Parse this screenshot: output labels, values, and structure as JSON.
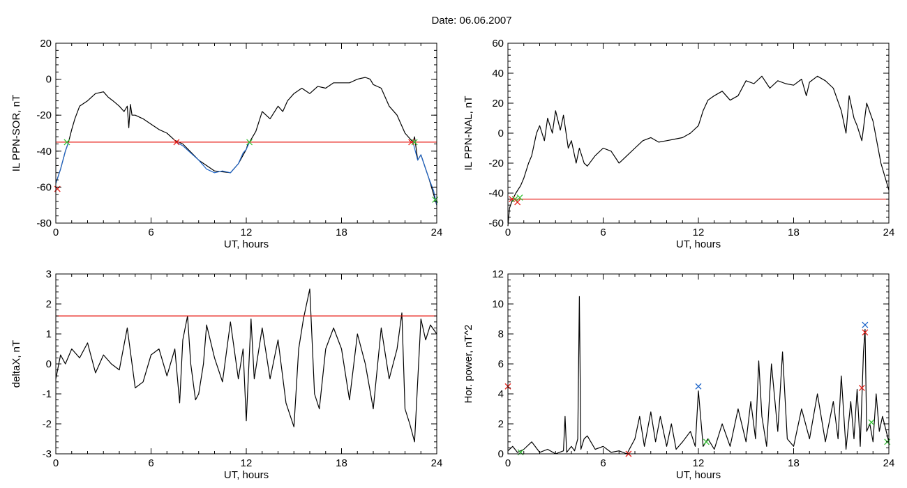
{
  "figure": {
    "title": "Date:  06.06.2007"
  },
  "chart_data": [
    {
      "type": "line",
      "panel": "top-left",
      "xlabel": "UT, hours",
      "ylabel": "IL PPN-SOR, nT",
      "xlim": [
        0,
        24
      ],
      "ylim": [
        -80,
        20
      ],
      "xticks": [
        0,
        6,
        12,
        18,
        24
      ],
      "yticks": [
        -80,
        -60,
        -40,
        -20,
        0,
        20
      ],
      "threshold": {
        "value": -35,
        "color": "#e8201a"
      },
      "series": [
        {
          "color": "#000000",
          "x": [
            0,
            0.3,
            0.6,
            0.8,
            1.0,
            1.2,
            1.5,
            2.0,
            2.5,
            3.0,
            3.3,
            3.6,
            4.0,
            4.3,
            4.5,
            4.6,
            4.7,
            4.8,
            5.0,
            5.5,
            6.0,
            6.5,
            7.0,
            7.5,
            8.0,
            9.0,
            10.0,
            11.0,
            11.5,
            12.0,
            12.1,
            12.2,
            12.6,
            13.0,
            13.5,
            14.0,
            14.3,
            14.6,
            15.0,
            15.5,
            16.0,
            16.5,
            17.0,
            17.5,
            18.0,
            18.5,
            19.0,
            19.5,
            19.8,
            20.0,
            20.5,
            21.0,
            21.5,
            22.0,
            22.5,
            22.6,
            22.8,
            23.0,
            23.5,
            24.0
          ],
          "y": [
            -58,
            -50,
            -40,
            -35,
            -28,
            -22,
            -15,
            -12,
            -8,
            -7,
            -10,
            -12,
            -15,
            -18,
            -15,
            -27,
            -14,
            -20,
            -20,
            -22,
            -25,
            -28,
            -30,
            -34,
            -36,
            -45,
            -51,
            -52,
            -47,
            -39,
            -36,
            -35,
            -29,
            -18,
            -22,
            -15,
            -18,
            -12,
            -8,
            -5,
            -8,
            -4,
            -5,
            -2,
            -2,
            -2,
            0,
            1,
            0,
            -3,
            -5,
            -15,
            -20,
            -30,
            -35,
            -32,
            -45,
            -42,
            -55,
            -70
          ]
        },
        {
          "color": "#1f66c9",
          "x": [
            0,
            0.3,
            0.6,
            0.8
          ],
          "y": [
            -58,
            -50,
            -40,
            -35
          ]
        },
        {
          "color": "#1f66c9",
          "x": [
            7.6,
            8.0,
            8.5,
            9.0,
            9.5,
            10.0,
            10.5,
            11.0,
            11.5,
            11.8,
            12.0,
            12.2
          ],
          "y": [
            -35,
            -37,
            -41,
            -45,
            -50,
            -52,
            -51,
            -52,
            -47,
            -41,
            -39,
            -35
          ]
        },
        {
          "color": "#1f66c9",
          "x": [
            22.5,
            22.8,
            23.0,
            23.3,
            23.5,
            23.8,
            24.0
          ],
          "y": [
            -35,
            -45,
            -42,
            -50,
            -55,
            -62,
            -70
          ]
        }
      ],
      "markers": [
        {
          "x": 0.7,
          "y": -35,
          "color": "#35c235"
        },
        {
          "x": 7.6,
          "y": -35,
          "color": "#e8201a"
        },
        {
          "x": 12.2,
          "y": -35,
          "color": "#35c235"
        },
        {
          "x": 22.4,
          "y": -35,
          "color": "#e8201a"
        },
        {
          "x": 22.6,
          "y": -35,
          "color": "#35c235"
        },
        {
          "x": 0.1,
          "y": -61,
          "color": "#e8201a"
        },
        {
          "x": 23.9,
          "y": -67,
          "color": "#35c235"
        }
      ]
    },
    {
      "type": "line",
      "panel": "top-right",
      "xlabel": "UT, hours",
      "ylabel": "IL PPN-NAL, nT",
      "xlim": [
        0,
        24
      ],
      "ylim": [
        -60,
        60
      ],
      "xticks": [
        0,
        6,
        12,
        18,
        24
      ],
      "yticks": [
        -60,
        -40,
        -20,
        0,
        20,
        40,
        60
      ],
      "threshold": {
        "value": -44,
        "color": "#e8201a"
      },
      "series": [
        {
          "color": "#000000",
          "x": [
            0,
            0.1,
            0.3,
            0.5,
            0.8,
            1.0,
            1.3,
            1.5,
            1.8,
            2.0,
            2.3,
            2.5,
            2.8,
            3.0,
            3.3,
            3.5,
            3.8,
            4.0,
            4.3,
            4.5,
            4.8,
            5.0,
            5.5,
            6.0,
            6.5,
            7.0,
            7.5,
            8.0,
            8.5,
            9.0,
            9.5,
            10.0,
            10.5,
            11.0,
            11.5,
            12.0,
            12.3,
            12.6,
            13.0,
            13.5,
            14.0,
            14.5,
            15.0,
            15.5,
            16.0,
            16.5,
            17.0,
            17.5,
            18.0,
            18.5,
            18.8,
            19.0,
            19.5,
            20.0,
            20.5,
            21.0,
            21.3,
            21.5,
            21.8,
            22.0,
            22.3,
            22.6,
            23.0,
            23.5,
            24.0
          ],
          "y": [
            -62,
            -50,
            -44,
            -40,
            -35,
            -30,
            -20,
            -15,
            0,
            5,
            -5,
            10,
            0,
            15,
            2,
            12,
            -10,
            -5,
            -20,
            -10,
            -20,
            -22,
            -15,
            -10,
            -12,
            -20,
            -15,
            -10,
            -5,
            -3,
            -6,
            -5,
            -4,
            -3,
            0,
            5,
            15,
            22,
            25,
            28,
            22,
            25,
            35,
            33,
            38,
            30,
            35,
            33,
            32,
            36,
            25,
            34,
            38,
            35,
            30,
            15,
            0,
            25,
            10,
            5,
            -5,
            20,
            8,
            -20,
            -38
          ]
        }
      ],
      "markers": [
        {
          "x": 0.25,
          "y": -44,
          "color": "#e8201a"
        },
        {
          "x": 0.45,
          "y": -44,
          "color": "#35c235"
        },
        {
          "x": 0.6,
          "y": -46,
          "color": "#e8201a"
        },
        {
          "x": 0.75,
          "y": -43,
          "color": "#35c235"
        }
      ]
    },
    {
      "type": "line",
      "panel": "bottom-left",
      "xlabel": "UT, hours",
      "ylabel": "deltaX, nT",
      "xlim": [
        0,
        24
      ],
      "ylim": [
        -3,
        3
      ],
      "xticks": [
        0,
        6,
        12,
        18,
        24
      ],
      "yticks": [
        -3,
        -2,
        -1,
        0,
        1,
        2,
        3
      ],
      "threshold": {
        "value": 1.6,
        "color": "#e8201a"
      },
      "series": [
        {
          "color": "#000000",
          "x": [
            0,
            0.3,
            0.6,
            1.0,
            1.5,
            2.0,
            2.5,
            3.0,
            3.5,
            4.0,
            4.5,
            5.0,
            5.5,
            6.0,
            6.5,
            7.0,
            7.5,
            7.8,
            8.0,
            8.3,
            8.5,
            8.8,
            9.0,
            9.3,
            9.5,
            10.0,
            10.5,
            11.0,
            11.5,
            11.8,
            12.0,
            12.3,
            12.5,
            13.0,
            13.5,
            14.0,
            14.5,
            15.0,
            15.3,
            15.6,
            16.0,
            16.3,
            16.6,
            17.0,
            17.5,
            18.0,
            18.5,
            19.0,
            19.5,
            20.0,
            20.5,
            21.0,
            21.5,
            21.8,
            22.0,
            22.3,
            22.6,
            23.0,
            23.3,
            23.6,
            24.0
          ],
          "y": [
            -0.5,
            0.3,
            0.0,
            0.5,
            0.2,
            0.7,
            -0.3,
            0.3,
            0.0,
            -0.2,
            1.2,
            -0.8,
            -0.6,
            0.3,
            0.5,
            -0.4,
            0.5,
            -1.3,
            0.8,
            1.6,
            0.0,
            -1.2,
            -1.0,
            0.0,
            1.3,
            0.2,
            -0.6,
            1.4,
            -0.5,
            0.5,
            -1.9,
            1.5,
            -0.5,
            1.2,
            -0.5,
            0.8,
            -1.3,
            -2.1,
            0.5,
            1.5,
            2.5,
            -1.0,
            -1.5,
            0.5,
            1.2,
            0.5,
            -1.2,
            1.0,
            0.0,
            -1.5,
            1.2,
            -0.5,
            0.5,
            1.7,
            -1.5,
            -2.0,
            -2.6,
            1.5,
            0.8,
            1.3,
            1.0
          ]
        }
      ],
      "markers": []
    },
    {
      "type": "line",
      "panel": "bottom-right",
      "xlabel": "UT, hours",
      "ylabel": "Hor. power, nT^2",
      "xlim": [
        0,
        24
      ],
      "ylim": [
        0,
        12
      ],
      "xticks": [
        0,
        6,
        12,
        18,
        24
      ],
      "yticks": [
        0,
        2,
        4,
        6,
        8,
        10,
        12
      ],
      "series": [
        {
          "color": "#000000",
          "x": [
            0,
            0.3,
            0.6,
            1.0,
            1.5,
            2.0,
            2.5,
            3.0,
            3.5,
            3.6,
            3.7,
            4.0,
            4.2,
            4.4,
            4.5,
            4.6,
            4.8,
            5.0,
            5.5,
            6.0,
            6.5,
            7.0,
            7.5,
            8.0,
            8.3,
            8.6,
            9.0,
            9.3,
            9.6,
            10.0,
            10.3,
            10.6,
            11.0,
            11.5,
            11.8,
            12.0,
            12.3,
            12.6,
            13.0,
            13.5,
            14.0,
            14.5,
            15.0,
            15.3,
            15.6,
            15.8,
            16.0,
            16.3,
            16.6,
            17.0,
            17.3,
            17.6,
            18.0,
            18.5,
            19.0,
            19.5,
            20.0,
            20.5,
            20.8,
            21.0,
            21.3,
            21.6,
            21.8,
            22.0,
            22.2,
            22.4,
            22.5,
            22.6,
            22.8,
            23.0,
            23.2,
            23.4,
            23.6,
            24.0
          ],
          "y": [
            0.2,
            0.5,
            0.1,
            0.3,
            0.8,
            0.1,
            0.3,
            0.0,
            0.2,
            2.5,
            0.1,
            0.5,
            0.2,
            1.0,
            10.5,
            0.3,
            1.0,
            1.2,
            0.3,
            0.5,
            0.1,
            0.2,
            0.0,
            1.0,
            2.5,
            0.5,
            2.8,
            0.8,
            2.5,
            0.5,
            2.0,
            0.3,
            0.8,
            1.5,
            0.5,
            4.2,
            0.5,
            1.0,
            0.3,
            2.0,
            0.5,
            3.0,
            0.8,
            3.5,
            1.0,
            6.2,
            2.5,
            0.5,
            6.0,
            1.5,
            6.8,
            1.0,
            0.5,
            3.0,
            1.0,
            4.0,
            0.8,
            3.5,
            1.0,
            5.2,
            0.3,
            3.5,
            1.0,
            4.3,
            0.5,
            6.8,
            8.3,
            1.5,
            2.0,
            0.8,
            4.0,
            1.5,
            2.5,
            0.8
          ]
        }
      ],
      "markers": [
        {
          "x": 0.0,
          "y": 4.5,
          "color": "#e8201a"
        },
        {
          "x": 7.6,
          "y": 0.0,
          "color": "#e8201a"
        },
        {
          "x": 12.0,
          "y": 4.5,
          "color": "#1f66c9"
        },
        {
          "x": 22.3,
          "y": 4.4,
          "color": "#e8201a"
        },
        {
          "x": 22.5,
          "y": 8.1,
          "color": "#e8201a"
        },
        {
          "x": 22.5,
          "y": 8.6,
          "color": "#1f66c9"
        },
        {
          "x": 0.8,
          "y": 0.1,
          "color": "#35c235"
        },
        {
          "x": 12.5,
          "y": 0.8,
          "color": "#35c235"
        },
        {
          "x": 23.9,
          "y": 0.8,
          "color": "#35c235"
        },
        {
          "x": 22.9,
          "y": 2.1,
          "color": "#35c235"
        }
      ]
    }
  ]
}
